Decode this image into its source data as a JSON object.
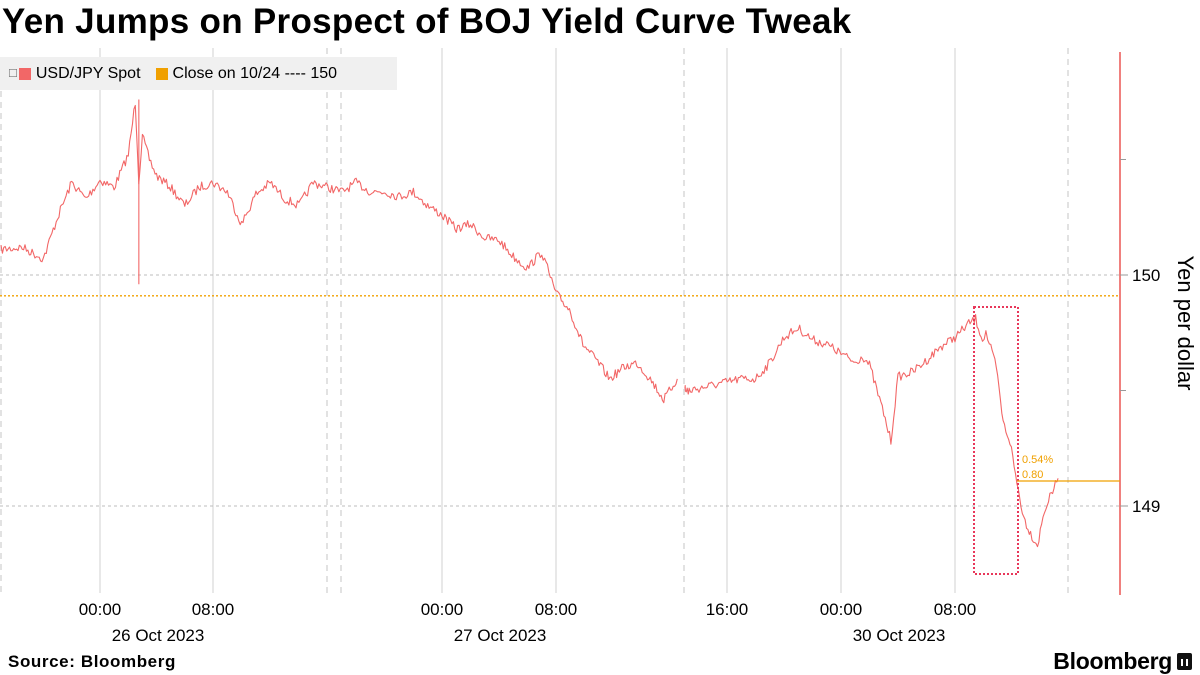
{
  "title": "Yen Jumps on Prospect of BOJ Yield Curve Tweak",
  "source": "Source:  Bloomberg",
  "brand": "Bloomberg",
  "colors": {
    "series": "#f26767",
    "reference": "#f0a000",
    "box": "#e8375a",
    "axis": "#e94a48",
    "grid": "#bdbdbd"
  },
  "legend": [
    {
      "label": "USD/JPY Spot",
      "color": "#f26767"
    },
    {
      "label": "Close on 10/24 ---- 150",
      "color": "#f0a000"
    }
  ],
  "chart_data": {
    "type": "line",
    "title": "Yen Jumps on Prospect of BOJ Yield Curve Tweak",
    "ylabel": "Yen per dollar",
    "y_axis_side": "right",
    "ylim": [
      148.6,
      151.0
    ],
    "yticks": [
      149,
      150
    ],
    "x_ticks": [
      {
        "label": "00:00",
        "date_label": "26 Oct 2023"
      },
      {
        "label": "08:00",
        "date_label": ""
      },
      {
        "label": "00:00",
        "date_label": "27 Oct 2023"
      },
      {
        "label": "08:00",
        "date_label": ""
      },
      {
        "label": "16:00",
        "date_label": ""
      },
      {
        "label": "00:00",
        "date_label": "30 Oct 2023"
      },
      {
        "label": "08:00",
        "date_label": ""
      }
    ],
    "reference_line": {
      "name": "Close on 10/24",
      "value": 149.91
    },
    "annotations": [
      {
        "text": "0.54%"
      },
      {
        "text": "0.80"
      }
    ],
    "series": [
      {
        "name": "USD/JPY Spot",
        "segments": [
          {
            "x": [
              "2023-10-25 17:00",
              "2023-10-25 18:30",
              "2023-10-25 20:00",
              "2023-10-25 21:00",
              "2023-10-25 22:00",
              "2023-10-25 23:00",
              "2023-10-26 00:00",
              "2023-10-26 01:00",
              "2023-10-26 02:00",
              "2023-10-26 02:30",
              "2023-10-26 02:45",
              "2023-10-26 03:00",
              "2023-10-26 03:30",
              "2023-10-26 04:00",
              "2023-10-26 05:00",
              "2023-10-26 06:00",
              "2023-10-26 07:00",
              "2023-10-26 08:00",
              "2023-10-26 09:00",
              "2023-10-26 10:00",
              "2023-10-26 11:00",
              "2023-10-26 12:00",
              "2023-10-26 13:00",
              "2023-10-26 14:00",
              "2023-10-26 15:00",
              "2023-10-26 16:00",
              "2023-10-26 17:00",
              "2023-10-26 18:00",
              "2023-10-26 19:00",
              "2023-10-26 20:00",
              "2023-10-26 21:00",
              "2023-10-26 22:00",
              "2023-10-26 23:00",
              "2023-10-27 00:00",
              "2023-10-27 01:00",
              "2023-10-27 02:00",
              "2023-10-27 03:00",
              "2023-10-27 04:00",
              "2023-10-27 05:00",
              "2023-10-27 06:00",
              "2023-10-27 07:00",
              "2023-10-27 08:00",
              "2023-10-27 09:00",
              "2023-10-27 10:00",
              "2023-10-27 11:00",
              "2023-10-27 12:00",
              "2023-10-27 13:00",
              "2023-10-27 14:00",
              "2023-10-27 15:00",
              "2023-10-27 16:00",
              "2023-10-27 17:00"
            ],
            "y": [
              150.11,
              150.12,
              150.07,
              150.25,
              150.4,
              150.33,
              150.41,
              150.38,
              150.52,
              150.75,
              150.41,
              150.6,
              150.5,
              150.43,
              150.38,
              150.3,
              150.38,
              150.4,
              150.36,
              150.22,
              150.35,
              150.4,
              150.33,
              150.3,
              150.4,
              150.38,
              150.36,
              150.4,
              150.36,
              150.36,
              150.34,
              150.36,
              150.3,
              150.26,
              150.2,
              150.22,
              150.16,
              150.15,
              150.08,
              150.03,
              150.1,
              149.92,
              149.85,
              149.7,
              149.63,
              149.55,
              149.6,
              149.62,
              149.55,
              149.46,
              149.55
            ]
          },
          {
            "x": [
              "2023-10-27 18:30",
              "2023-10-27 19:00",
              "2023-10-27 20:00",
              "2023-10-27 21:00",
              "2023-10-27 22:00",
              "2023-10-27 23:00",
              "2023-10-29 17:00",
              "2023-10-29 18:00",
              "2023-10-29 19:00",
              "2023-10-29 20:00",
              "2023-10-29 21:00",
              "2023-10-29 22:00",
              "2023-10-29 23:00",
              "2023-10-30 00:00",
              "2023-10-30 01:00",
              "2023-10-30 01:30",
              "2023-10-30 02:00",
              "2023-10-30 03:00",
              "2023-10-30 03:30",
              "2023-10-30 04:00",
              "2023-10-30 05:00",
              "2023-10-30 06:00",
              "2023-10-30 07:00",
              "2023-10-30 08:00",
              "2023-10-30 09:00",
              "2023-10-30 09:30",
              "2023-10-30 10:00",
              "2023-10-30 10:15",
              "2023-10-30 10:30",
              "2023-10-30 11:00",
              "2023-10-30 11:30",
              "2023-10-30 12:00",
              "2023-10-30 12:30",
              "2023-10-30 13:00",
              "2023-10-30 13:30",
              "2023-10-30 14:00",
              "2023-10-30 14:30",
              "2023-10-30 15:00",
              "2023-10-30 15:30"
            ],
            "y": [
              149.52,
              149.5,
              149.49,
              149.52,
              149.48,
              149.5,
              149.55,
              149.55,
              149.62,
              149.73,
              149.77,
              149.72,
              149.7,
              149.66,
              149.62,
              149.65,
              149.61,
              149.4,
              149.28,
              149.56,
              149.58,
              149.63,
              149.69,
              149.73,
              149.79,
              149.81,
              149.72,
              149.75,
              149.7,
              149.6,
              149.36,
              149.28,
              149.1,
              148.95,
              148.88,
              148.83,
              148.98,
              149.05,
              149.12
            ]
          }
        ]
      }
    ]
  }
}
